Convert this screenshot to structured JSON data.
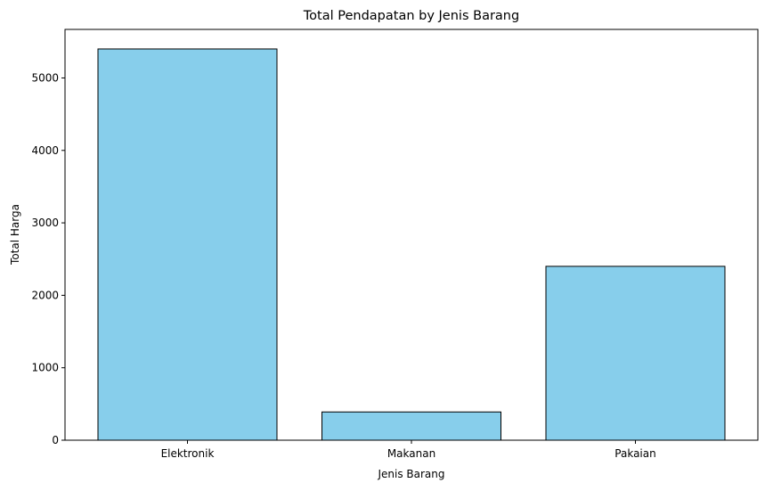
{
  "chart_data": {
    "type": "bar",
    "title": "Total Pendapatan by Jenis Barang",
    "xlabel": "Jenis Barang",
    "ylabel": "Total Harga",
    "categories": [
      "Elektronik",
      "Makanan",
      "Pakaian"
    ],
    "values": [
      5400,
      390,
      2400
    ],
    "ylim": [
      0,
      5670
    ],
    "yticks": [
      0,
      1000,
      2000,
      3000,
      4000,
      5000
    ],
    "grid": false,
    "legend": "none",
    "colors": {
      "bar_fill": "#87CEEB",
      "bar_edge": "#000000",
      "axes": "#000000",
      "background": "#ffffff"
    }
  }
}
